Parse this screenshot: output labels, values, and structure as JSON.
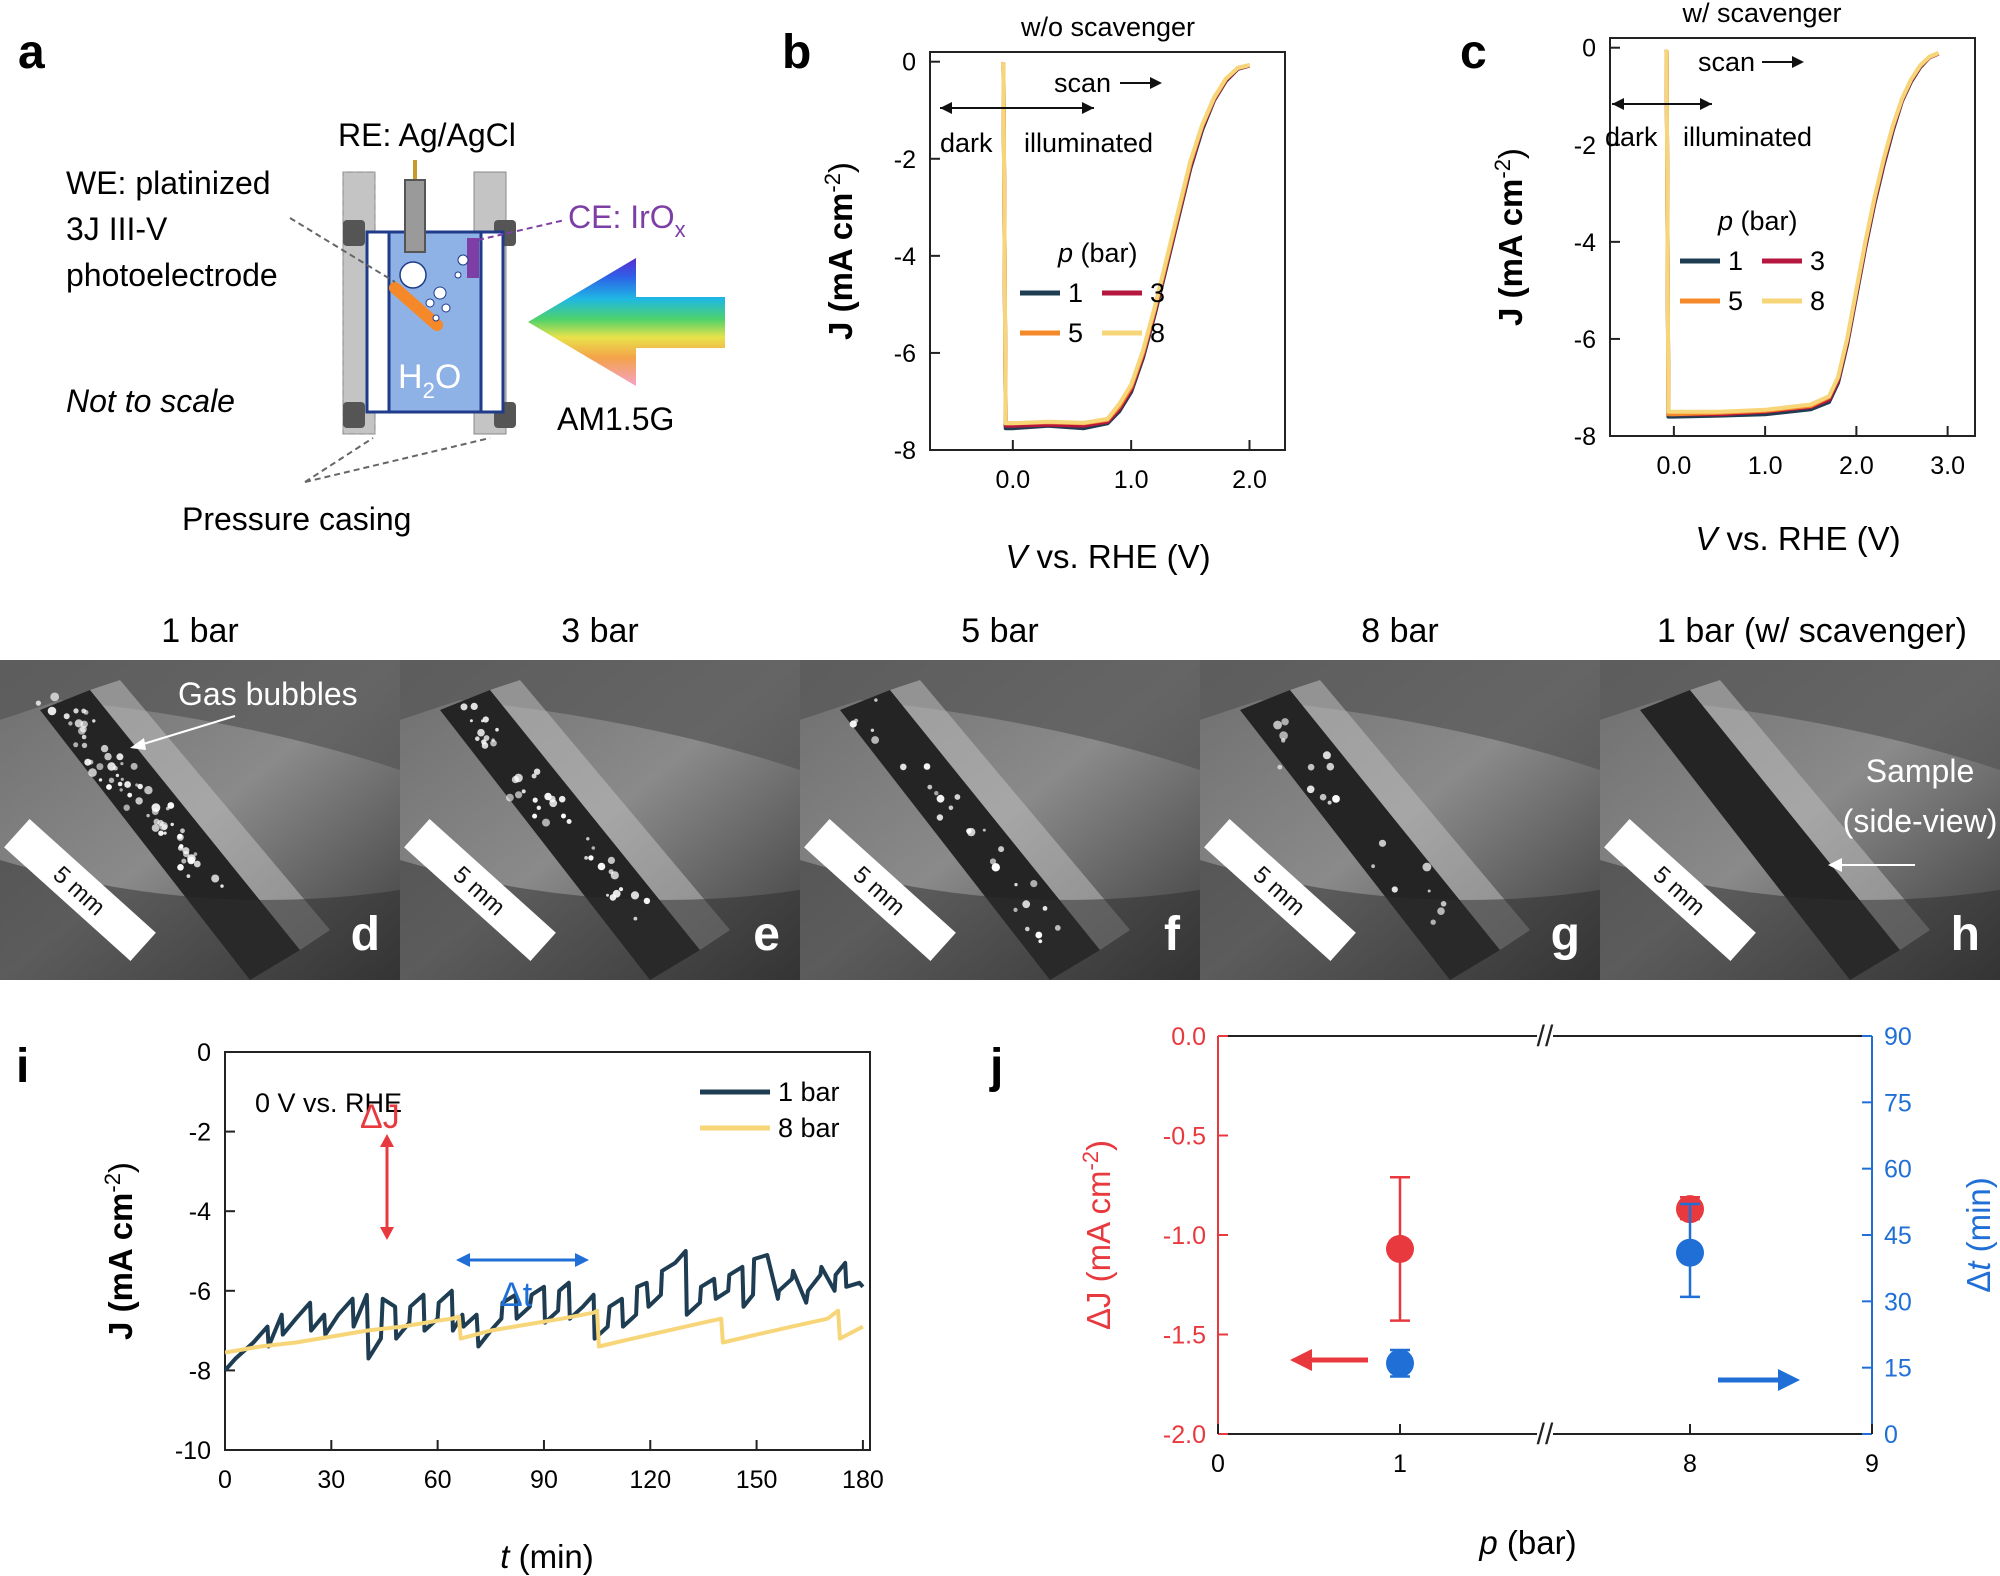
{
  "panel_letters": {
    "a": "a",
    "b": "b",
    "c": "c",
    "d": "d",
    "e": "e",
    "f": "f",
    "g": "g",
    "h": "h",
    "i": "i",
    "j": "j"
  },
  "schematic": {
    "re_label": "RE: Ag/AgCl",
    "we_label_line1": "WE: platinized",
    "we_label_line2": "3J III-V",
    "we_label_line3": "photoelectrode",
    "ce_label": "CE: IrO",
    "ce_sub": "x",
    "water_label": "H",
    "water_sub": "2",
    "water_label_end": "O",
    "not_to_scale": "Not to scale",
    "light_label": "AM1.5G",
    "casing_label": "Pressure casing",
    "colors": {
      "cell": "#8fb2e6",
      "electrode": "#f5892a",
      "counter": "#7d3fa5",
      "casing": "#bfbfbf"
    }
  },
  "photos": {
    "titles": [
      "1 bar",
      "3 bar",
      "5 bar",
      "8 bar",
      "1 bar (w/ scavenger)"
    ],
    "scale_bar": "5 mm",
    "bubbles_label": "Gas bubbles",
    "sample_label_line1": "Sample",
    "sample_label_line2": "(side-view)"
  },
  "chart_data": [
    {
      "id": "b",
      "type": "line",
      "title": "w/o scavenger",
      "xlabel_italic": "V",
      "xlabel_rest": " vs. RHE (V)",
      "ylabel": "J (mA cm",
      "ylabel_sup": "-2",
      "ylabel_end": ")",
      "xlim": [
        -0.7,
        2.3
      ],
      "ylim": [
        -8,
        0.2
      ],
      "xticks": [
        0,
        1,
        2
      ],
      "xtick_labels": [
        "0.0",
        "1.0",
        "2.0"
      ],
      "yticks": [
        0,
        -2,
        -4,
        -6,
        -8
      ],
      "ytick_labels": [
        "0",
        "-2",
        "-4",
        "-6",
        "-8"
      ],
      "annotations": {
        "dark": "dark",
        "illuminated": "illuminated",
        "scan": "scan"
      },
      "legend_title_italic": "p",
      "legend_title_rest": " (bar)",
      "series": [
        {
          "name": "1",
          "color": "#1e3d52",
          "x": [
            -0.1,
            -0.08,
            -0.06,
            0.0,
            0.3,
            0.6,
            0.8,
            0.9,
            1.0,
            1.1,
            1.2,
            1.3,
            1.4,
            1.5,
            1.6,
            1.7,
            1.8,
            1.9,
            2.0
          ],
          "y": [
            -0.05,
            -0.05,
            -7.55,
            -7.55,
            -7.5,
            -7.55,
            -7.45,
            -7.2,
            -6.8,
            -6.1,
            -5.2,
            -4.2,
            -3.2,
            -2.2,
            -1.4,
            -0.8,
            -0.4,
            -0.15,
            -0.08
          ]
        },
        {
          "name": "3",
          "color": "#b5173f",
          "x": [
            -0.1,
            -0.08,
            -0.06,
            0.0,
            0.3,
            0.6,
            0.8,
            0.9,
            1.0,
            1.1,
            1.2,
            1.3,
            1.4,
            1.5,
            1.6,
            1.7,
            1.8,
            1.9,
            2.0
          ],
          "y": [
            -0.05,
            -0.05,
            -7.5,
            -7.5,
            -7.48,
            -7.5,
            -7.42,
            -7.15,
            -6.75,
            -6.05,
            -5.15,
            -4.15,
            -3.15,
            -2.15,
            -1.35,
            -0.78,
            -0.38,
            -0.14,
            -0.08
          ]
        },
        {
          "name": "5",
          "color": "#f5892a",
          "x": [
            -0.1,
            -0.08,
            -0.06,
            0.0,
            0.3,
            0.6,
            0.8,
            0.9,
            1.0,
            1.1,
            1.2,
            1.3,
            1.4,
            1.5,
            1.6,
            1.7,
            1.8,
            1.9,
            2.0
          ],
          "y": [
            -0.05,
            -0.05,
            -7.45,
            -7.45,
            -7.43,
            -7.45,
            -7.38,
            -7.1,
            -6.7,
            -6.0,
            -5.1,
            -4.1,
            -3.1,
            -2.1,
            -1.32,
            -0.76,
            -0.36,
            -0.13,
            -0.07
          ]
        },
        {
          "name": "8",
          "color": "#f7d679",
          "x": [
            -0.1,
            -0.08,
            -0.06,
            0.0,
            0.3,
            0.6,
            0.8,
            0.9,
            1.0,
            1.1,
            1.2,
            1.3,
            1.4,
            1.5,
            1.6,
            1.7,
            1.8,
            1.9,
            2.0
          ],
          "y": [
            -0.05,
            -0.05,
            -7.45,
            -7.45,
            -7.42,
            -7.44,
            -7.36,
            -7.05,
            -6.65,
            -5.95,
            -5.05,
            -4.05,
            -3.05,
            -2.05,
            -1.3,
            -0.74,
            -0.35,
            -0.13,
            -0.07
          ]
        }
      ]
    },
    {
      "id": "c",
      "type": "line",
      "title": "w/ scavenger",
      "xlabel_italic": "V",
      "xlabel_rest": " vs. RHE (V)",
      "ylabel": "J (mA cm",
      "ylabel_sup": "-2",
      "ylabel_end": ")",
      "xlim": [
        -0.7,
        3.3
      ],
      "ylim": [
        -8,
        0.2
      ],
      "xticks": [
        0,
        1,
        2,
        3
      ],
      "xtick_labels": [
        "0.0",
        "1.0",
        "2.0",
        "3.0"
      ],
      "yticks": [
        0,
        -2,
        -4,
        -6,
        -8
      ],
      "ytick_labels": [
        "0",
        "-2",
        "-4",
        "-6",
        "-8"
      ],
      "annotations": {
        "dark": "dark",
        "illuminated": "illuminated",
        "scan": "scan"
      },
      "legend_title_italic": "p",
      "legend_title_rest": " (bar)",
      "series": [
        {
          "name": "1",
          "color": "#1e3d52",
          "x": [
            -0.1,
            -0.08,
            -0.06,
            0.0,
            0.5,
            1.0,
            1.5,
            1.7,
            1.8,
            1.9,
            2.0,
            2.1,
            2.2,
            2.3,
            2.4,
            2.5,
            2.6,
            2.7,
            2.8,
            2.9
          ],
          "y": [
            -0.08,
            -0.08,
            -7.6,
            -7.6,
            -7.58,
            -7.55,
            -7.45,
            -7.3,
            -6.9,
            -6.1,
            -5.1,
            -4.1,
            -3.2,
            -2.4,
            -1.7,
            -1.1,
            -0.7,
            -0.4,
            -0.2,
            -0.12
          ]
        },
        {
          "name": "3",
          "color": "#b5173f",
          "x": [
            -0.1,
            -0.08,
            -0.06,
            0.0,
            0.5,
            1.0,
            1.5,
            1.7,
            1.8,
            1.9,
            2.0,
            2.1,
            2.2,
            2.3,
            2.4,
            2.5,
            2.6,
            2.7,
            2.8,
            2.9
          ],
          "y": [
            -0.08,
            -0.08,
            -7.55,
            -7.55,
            -7.55,
            -7.5,
            -7.4,
            -7.25,
            -6.85,
            -6.05,
            -5.05,
            -4.05,
            -3.15,
            -2.35,
            -1.65,
            -1.08,
            -0.68,
            -0.38,
            -0.2,
            -0.12
          ]
        },
        {
          "name": "5",
          "color": "#f5892a",
          "x": [
            -0.1,
            -0.08,
            -0.06,
            0.0,
            0.5,
            1.0,
            1.5,
            1.7,
            1.8,
            1.9,
            2.0,
            2.1,
            2.2,
            2.3,
            2.4,
            2.5,
            2.6,
            2.7,
            2.8,
            2.9
          ],
          "y": [
            -0.08,
            -0.08,
            -7.55,
            -7.55,
            -7.52,
            -7.48,
            -7.38,
            -7.2,
            -6.8,
            -6.0,
            -5.0,
            -4.0,
            -3.1,
            -2.3,
            -1.62,
            -1.06,
            -0.66,
            -0.37,
            -0.19,
            -0.11
          ]
        },
        {
          "name": "8",
          "color": "#f7d679",
          "x": [
            -0.1,
            -0.08,
            -0.06,
            0.0,
            0.5,
            1.0,
            1.5,
            1.7,
            1.8,
            1.9,
            2.0,
            2.1,
            2.2,
            2.3,
            2.4,
            2.5,
            2.6,
            2.7,
            2.8,
            2.9
          ],
          "y": [
            -0.08,
            -0.08,
            -7.5,
            -7.5,
            -7.5,
            -7.46,
            -7.35,
            -7.18,
            -6.78,
            -5.98,
            -4.98,
            -3.98,
            -3.08,
            -2.28,
            -1.6,
            -1.05,
            -0.65,
            -0.36,
            -0.19,
            -0.11
          ]
        }
      ]
    },
    {
      "id": "i",
      "type": "line",
      "xlabel_italic": "t",
      "xlabel_rest": " (min)",
      "ylabel": "J (mA cm",
      "ylabel_sup": "-2",
      "ylabel_end": ")",
      "xlim": [
        0,
        182
      ],
      "ylim": [
        -10,
        0
      ],
      "xticks": [
        0,
        30,
        60,
        90,
        120,
        150,
        180
      ],
      "xtick_labels": [
        "0",
        "30",
        "60",
        "90",
        "120",
        "150",
        "180"
      ],
      "yticks": [
        0,
        -2,
        -4,
        -6,
        -8,
        -10
      ],
      "ytick_labels": [
        "0",
        "-2",
        "-4",
        "-6",
        "-8",
        "-10"
      ],
      "condition_label": "0 V vs. RHE",
      "delta_j_label": "ΔJ",
      "delta_t_label": "Δt",
      "series": [
        {
          "name": "1 bar",
          "color": "#1e3d52",
          "x": [
            0,
            3,
            8,
            12,
            12.3,
            16,
            16.3,
            20,
            24,
            24.3,
            28,
            28.3,
            32,
            36,
            36.3,
            40,
            40.5,
            44,
            44.5,
            48,
            48.3,
            52,
            52.3,
            56,
            56.3,
            60,
            60.3,
            64,
            64.3,
            67,
            67.3,
            71,
            71.5,
            75,
            78,
            78.3,
            82,
            82.3,
            86,
            86.5,
            90,
            90.3,
            94,
            94.3,
            97,
            97.3,
            101,
            104,
            104.3,
            108,
            108.5,
            112,
            112.3,
            116,
            116.3,
            119,
            119.5,
            123,
            123.3,
            127,
            130,
            130.3,
            134,
            134.3,
            138,
            138.5,
            142,
            142.3,
            146,
            146.3,
            149,
            149.3,
            153,
            156,
            156.3,
            160,
            160.3,
            164,
            164.5,
            168,
            168.3,
            172,
            172.3,
            175,
            175.3,
            179,
            180
          ],
          "y": [
            -8,
            -7.7,
            -7.3,
            -6.9,
            -7.4,
            -6.6,
            -7.1,
            -6.7,
            -6.3,
            -7.0,
            -6.6,
            -7.1,
            -6.6,
            -6.2,
            -6.9,
            -6.1,
            -7.7,
            -7.2,
            -6.2,
            -6.4,
            -7.2,
            -6.8,
            -6.4,
            -6.1,
            -7.0,
            -6.7,
            -6.3,
            -6.0,
            -7.0,
            -6.6,
            -6.9,
            -6.6,
            -7.4,
            -7.0,
            -6.7,
            -6.3,
            -6.1,
            -6.7,
            -6.4,
            -6.1,
            -5.9,
            -6.8,
            -6.5,
            -6.0,
            -5.8,
            -6.7,
            -6.4,
            -6.1,
            -7.2,
            -6.9,
            -6.4,
            -6.2,
            -6.9,
            -6.6,
            -5.9,
            -5.8,
            -6.4,
            -6.1,
            -5.5,
            -5.3,
            -5.0,
            -6.6,
            -6.3,
            -5.9,
            -5.7,
            -6.2,
            -6.0,
            -5.6,
            -5.4,
            -6.4,
            -6.1,
            -5.2,
            -5.1,
            -6.2,
            -6.0,
            -5.7,
            -5.5,
            -6.3,
            -6.0,
            -5.6,
            -5.4,
            -6.0,
            -5.6,
            -5.3,
            -5.9,
            -5.8,
            -5.9
          ]
        },
        {
          "name": "8 bar",
          "color": "#f7d679",
          "x": [
            0,
            10,
            20,
            30,
            40,
            50,
            60,
            64,
            66,
            66.5,
            75,
            85,
            95,
            104,
            105,
            105.5,
            115,
            125,
            135,
            140,
            140.5,
            150,
            160,
            170,
            173,
            173.5,
            180
          ],
          "y": [
            -7.55,
            -7.4,
            -7.3,
            -7.15,
            -7.0,
            -6.9,
            -6.75,
            -6.7,
            -6.65,
            -7.2,
            -7.0,
            -6.85,
            -6.7,
            -6.55,
            -6.5,
            -7.4,
            -7.2,
            -7.0,
            -6.8,
            -6.7,
            -7.3,
            -7.1,
            -6.9,
            -6.7,
            -6.5,
            -7.2,
            -6.9
          ]
        }
      ]
    },
    {
      "id": "j",
      "type": "scatter",
      "xlabel_italic": "p",
      "xlabel_rest": " (bar)",
      "ylabel_left": "ΔJ (mA cm",
      "ylabel_left_sup": "-2",
      "ylabel_left_end": ")",
      "ylabel_right_greek": "Δ",
      "ylabel_right_italic": "t",
      "ylabel_right_rest": " (min)",
      "xtick_labels": [
        "0",
        "1",
        "8",
        "9"
      ],
      "ylim_left": [
        -2.0,
        0.0
      ],
      "yticks_left": [
        0.0,
        -0.5,
        -1.0,
        -1.5,
        -2.0
      ],
      "ytick_labels_left": [
        "0.0",
        "-0.5",
        "-1.0",
        "-1.5",
        "-2.0"
      ],
      "ylim_right": [
        0,
        90
      ],
      "yticks_right": [
        0,
        15,
        30,
        45,
        60,
        75,
        90
      ],
      "ytick_labels_right": [
        "0",
        "15",
        "30",
        "45",
        "60",
        "75",
        "90"
      ],
      "axis_break": "//",
      "series": [
        {
          "name": "ΔJ",
          "axis": "left",
          "color": "#e8393f",
          "points": [
            {
              "p": 1,
              "value": -1.07,
              "err_low": -1.43,
              "err_high": -0.71
            },
            {
              "p": 8,
              "value": -0.87,
              "err_low": -0.92,
              "err_high": -0.81
            }
          ]
        },
        {
          "name": "Δt",
          "axis": "right",
          "color": "#1f6fd6",
          "points": [
            {
              "p": 1,
              "value": 16,
              "err_low": 13,
              "err_high": 19
            },
            {
              "p": 8,
              "value": 41,
              "err_low": 31,
              "err_high": 52
            }
          ]
        }
      ]
    }
  ]
}
